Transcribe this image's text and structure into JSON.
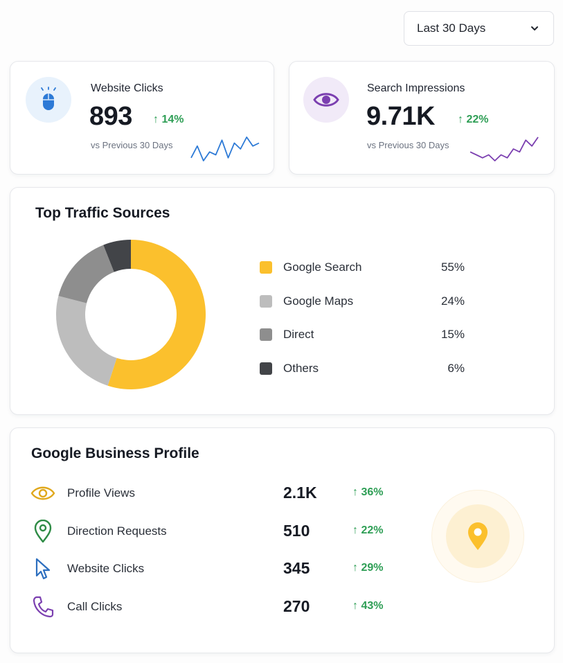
{
  "range_selector": {
    "label": "Last 30 Days"
  },
  "kpis": [
    {
      "title": "Website Clicks",
      "value": "893",
      "delta": "↑ 14%",
      "subtitle": "vs Previous 30 Days",
      "icon": "mouse-icon",
      "icon_bg": "#e8f2fc",
      "accent": "#2d7ad6",
      "sparkline": [
        3,
        7,
        2,
        5,
        4,
        9,
        3,
        8,
        6,
        10,
        7,
        8
      ]
    },
    {
      "title": "Search Impressions",
      "value": "9.71K",
      "delta": "↑ 22%",
      "subtitle": "vs Previous 30 Days",
      "icon": "eye-icon",
      "icon_bg": "#f1eaf8",
      "accent": "#7b3fb0",
      "sparkline": [
        4,
        3,
        2,
        3,
        1,
        3,
        2,
        5,
        4,
        8,
        6,
        9
      ]
    }
  ],
  "traffic": {
    "title": "Top Traffic Sources",
    "chart_data": {
      "type": "pie",
      "title": "Top Traffic Sources",
      "categories": [
        "Google Search",
        "Google Maps",
        "Direct",
        "Others"
      ],
      "values": [
        55,
        24,
        15,
        6
      ],
      "colors": [
        "#fbc02d",
        "#bdbdbd",
        "#8e8e8e",
        "#424448"
      ]
    },
    "legend": [
      {
        "label": "Google Search",
        "pct": "55%",
        "color": "#fbc02d"
      },
      {
        "label": "Google Maps",
        "pct": "24%",
        "color": "#bdbdbd"
      },
      {
        "label": "Direct",
        "pct": "15%",
        "color": "#8e8e8e"
      },
      {
        "label": "Others",
        "pct": "6%",
        "color": "#424448"
      }
    ]
  },
  "business_profile": {
    "title": "Google Business Profile",
    "rows": [
      {
        "label": "Profile Views",
        "value": "2.1K",
        "delta": "↑ 36%",
        "icon": "eye-icon",
        "color": "#e0a81c"
      },
      {
        "label": "Direction Requests",
        "value": "510",
        "delta": "↑ 22%",
        "icon": "map-pin-icon",
        "color": "#2e8b45"
      },
      {
        "label": "Website Clicks",
        "value": "345",
        "delta": "↑ 29%",
        "icon": "cursor-icon",
        "color": "#2d6fbf"
      },
      {
        "label": "Call Clicks",
        "value": "270",
        "delta": "↑ 43%",
        "icon": "phone-icon",
        "color": "#7b3fb0"
      }
    ],
    "badge_icon": "location-pin-icon",
    "badge_color": "#fbc02d"
  }
}
